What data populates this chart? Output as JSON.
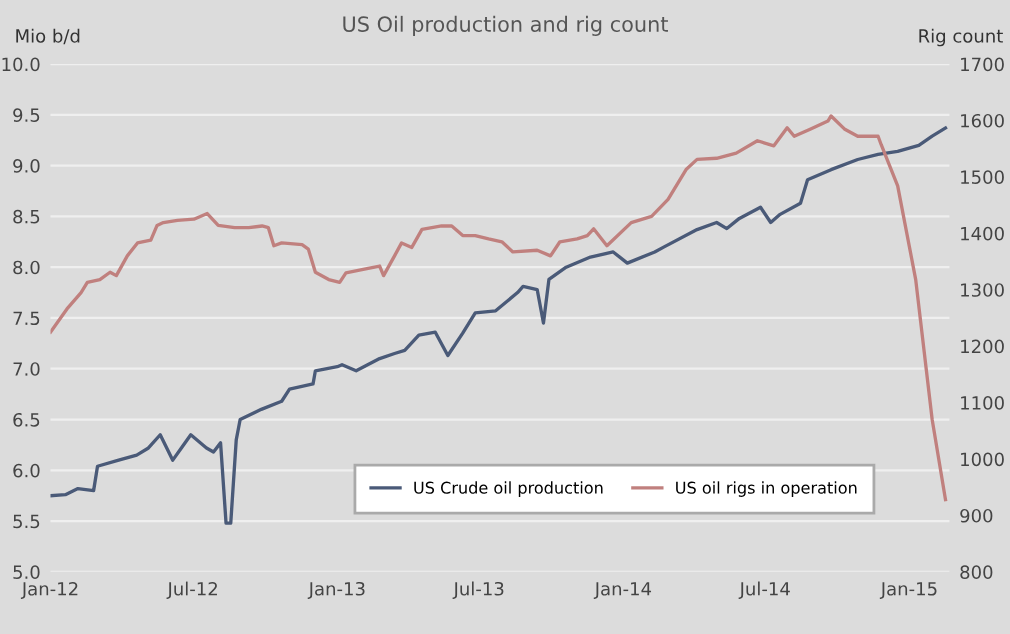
{
  "chart_data": {
    "type": "line",
    "title": "US Oil production and rig count",
    "ylabel": "Mio b/d",
    "y2label": "Rig count",
    "xlim": [
      "2012-01-01",
      "2015-02-21"
    ],
    "xticks": [
      {
        "value": "2012-01-01",
        "label": "Jan-12"
      },
      {
        "value": "2012-07-01",
        "label": "Jul-12"
      },
      {
        "value": "2013-01-01",
        "label": "Jan-13"
      },
      {
        "value": "2013-07-01",
        "label": "Jul-13"
      },
      {
        "value": "2014-01-01",
        "label": "Jan-14"
      },
      {
        "value": "2014-07-01",
        "label": "Jul-14"
      },
      {
        "value": "2015-01-01",
        "label": "Jan-15"
      }
    ],
    "ylim": [
      5.0,
      10.0
    ],
    "yticks": [
      {
        "value": 5.0,
        "label": "5.0"
      },
      {
        "value": 5.5,
        "label": "5.5"
      },
      {
        "value": 6.0,
        "label": "6.0"
      },
      {
        "value": 6.5,
        "label": "6.5"
      },
      {
        "value": 7.0,
        "label": "7.0"
      },
      {
        "value": 7.5,
        "label": "7.5"
      },
      {
        "value": 8.0,
        "label": "8.0"
      },
      {
        "value": 8.5,
        "label": "8.5"
      },
      {
        "value": 9.0,
        "label": "9.0"
      },
      {
        "value": 9.5,
        "label": "9.5"
      },
      {
        "value": 10.0,
        "label": "10.0"
      }
    ],
    "y2lim": [
      800,
      1700
    ],
    "y2ticks": [
      800,
      900,
      1000,
      1100,
      1200,
      1300,
      1400,
      1500,
      1600,
      1700
    ],
    "grid": "y",
    "legend": "bottom right",
    "marker": "none",
    "line_style": "solid",
    "series": [
      {
        "name": "US Crude oil production",
        "color": "#4a5a78",
        "x": [
          "2012-01-01",
          "2012-01-20",
          "2012-02-05",
          "2012-02-25",
          "2012-03-01",
          "2012-03-28",
          "2012-04-20",
          "2012-05-05",
          "2012-05-20",
          "2012-06-05",
          "2012-06-16",
          "2012-06-28",
          "2012-07-18",
          "2012-07-27",
          "2012-08-05",
          "2012-08-12",
          "2012-08-18",
          "2012-08-25",
          "2012-08-30",
          "2012-09-26",
          "2012-10-22",
          "2012-11-01",
          "2012-12-01",
          "2012-12-04",
          "2013-01-01",
          "2013-01-07",
          "2013-01-25",
          "2013-02-24",
          "2013-03-15",
          "2013-03-28",
          "2013-04-15",
          "2013-05-06",
          "2013-05-22",
          "2013-06-10",
          "2013-06-26",
          "2013-07-22",
          "2013-08-19",
          "2013-08-26",
          "2013-09-13",
          "2013-09-21",
          "2013-09-28",
          "2013-10-20",
          "2013-11-20",
          "2013-12-19",
          "2014-01-06",
          "2014-02-10",
          "2014-02-22",
          "2014-04-05",
          "2014-04-30",
          "2014-05-13",
          "2014-05-29",
          "2014-06-25",
          "2014-07-08",
          "2014-07-20",
          "2014-08-15",
          "2014-08-24",
          "2014-09-23",
          "2014-10-27",
          "2014-11-22",
          "2014-12-17",
          "2015-01-13",
          "2015-01-30",
          "2015-02-16"
        ],
        "values": [
          5.75,
          5.76,
          5.82,
          5.8,
          6.04,
          6.1,
          6.15,
          6.22,
          6.35,
          6.1,
          6.22,
          6.35,
          6.22,
          6.18,
          6.27,
          5.48,
          5.48,
          6.3,
          6.5,
          6.6,
          6.68,
          6.8,
          6.85,
          6.98,
          7.02,
          7.04,
          6.98,
          7.1,
          7.15,
          7.18,
          7.33,
          7.36,
          7.13,
          7.35,
          7.55,
          7.57,
          7.75,
          7.81,
          7.78,
          7.45,
          7.88,
          8.0,
          8.1,
          8.15,
          8.04,
          8.15,
          8.2,
          8.37,
          8.44,
          8.38,
          8.48,
          8.59,
          8.44,
          8.52,
          8.63,
          8.86,
          8.96,
          9.06,
          9.11,
          9.14,
          9.2,
          9.29,
          9.37
        ]
      },
      {
        "name": "US oil rigs in operation",
        "color": "#c0807e",
        "axis": "y2",
        "x": [
          "2012-01-01",
          "2012-01-22",
          "2012-02-09",
          "2012-02-17",
          "2012-03-04",
          "2012-03-17",
          "2012-03-25",
          "2012-04-08",
          "2012-04-21",
          "2012-05-08",
          "2012-05-16",
          "2012-05-24",
          "2012-06-11",
          "2012-07-02",
          "2012-07-19",
          "2012-08-02",
          "2012-08-23",
          "2012-09-10",
          "2012-09-27",
          "2012-10-05",
          "2012-10-12",
          "2012-10-22",
          "2012-11-17",
          "2012-11-25",
          "2012-12-04",
          "2012-12-21",
          "2013-01-04",
          "2013-01-12",
          "2013-02-03",
          "2013-02-24",
          "2013-03-01",
          "2013-03-15",
          "2013-03-24",
          "2013-04-06",
          "2013-04-19",
          "2013-05-14",
          "2013-05-27",
          "2013-06-10",
          "2013-06-26",
          "2013-07-13",
          "2013-07-30",
          "2013-08-13",
          "2013-09-13",
          "2013-09-30",
          "2013-10-12",
          "2013-11-03",
          "2013-11-16",
          "2013-11-24",
          "2013-12-11",
          "2014-01-11",
          "2014-02-06",
          "2014-02-27",
          "2014-03-22",
          "2014-04-05",
          "2014-04-30",
          "2014-05-25",
          "2014-06-21",
          "2014-07-12",
          "2014-07-29",
          "2014-08-07",
          "2014-08-28",
          "2014-09-19",
          "2014-09-23",
          "2014-10-10",
          "2014-10-27",
          "2014-11-22",
          "2014-11-26",
          "2014-12-17",
          "2015-01-09",
          "2015-01-30",
          "2015-02-16"
        ],
        "values": [
          1225,
          1266,
          1295,
          1313,
          1318,
          1331,
          1325,
          1360,
          1383,
          1388,
          1414,
          1419,
          1423,
          1425,
          1435,
          1414,
          1410,
          1410,
          1413,
          1410,
          1378,
          1383,
          1380,
          1372,
          1331,
          1318,
          1313,
          1330,
          1336,
          1342,
          1325,
          1360,
          1383,
          1375,
          1407,
          1413,
          1413,
          1396,
          1396,
          1390,
          1385,
          1367,
          1370,
          1360,
          1385,
          1390,
          1396,
          1408,
          1378,
          1419,
          1430,
          1460,
          1513,
          1531,
          1533,
          1542,
          1564,
          1555,
          1587,
          1572,
          1585,
          1599,
          1608,
          1585,
          1572,
          1572,
          1557,
          1484,
          1318,
          1070,
          928
        ]
      }
    ]
  }
}
